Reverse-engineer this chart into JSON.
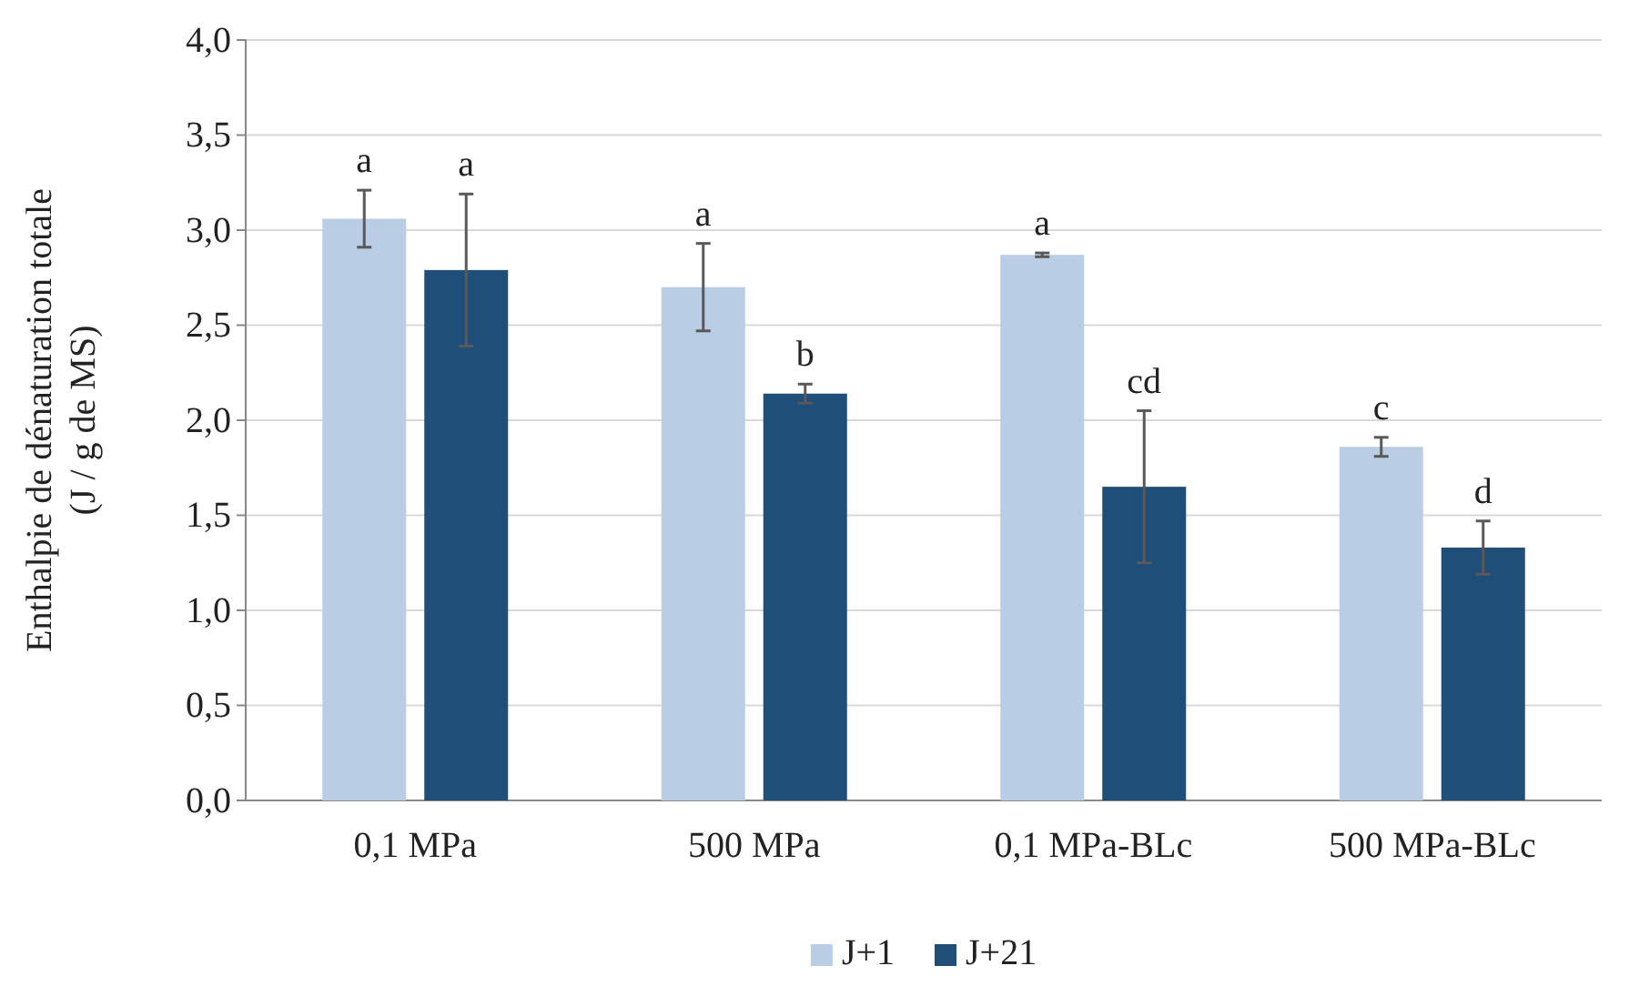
{
  "chart_data": {
    "type": "bar",
    "ylabel": "Enthalpie de dénaturation totale\n(J / g de MS)",
    "categories": [
      "0,1 MPa",
      "500 MPa",
      "0,1 MPa-BLc",
      "500 MPa-BLc"
    ],
    "series": [
      {
        "name": "J+1",
        "color": "#b9cde5",
        "values": [
          3.06,
          2.7,
          2.87,
          1.86
        ],
        "errors": [
          0.15,
          0.23,
          0.01,
          0.05
        ],
        "value_labels": [
          "a",
          "a",
          "a",
          "c"
        ]
      },
      {
        "name": "J+21",
        "color": "#1f4e79",
        "values": [
          2.79,
          2.14,
          1.65,
          1.33
        ],
        "errors": [
          0.4,
          0.05,
          0.4,
          0.14
        ],
        "value_labels": [
          "a",
          "b",
          "cd",
          "d"
        ]
      }
    ],
    "ylim": [
      0,
      4
    ],
    "yticks": [
      {
        "value": 0,
        "label": "0,0"
      },
      {
        "value": 0.5,
        "label": "0,5"
      },
      {
        "value": 1,
        "label": "1,0"
      },
      {
        "value": 1.5,
        "label": "1,5"
      },
      {
        "value": 2,
        "label": "2,0"
      },
      {
        "value": 2.5,
        "label": "2,5"
      },
      {
        "value": 3,
        "label": "3,0"
      },
      {
        "value": 3.5,
        "label": "3,5"
      },
      {
        "value": 4,
        "label": "4,0"
      }
    ],
    "grid": "y",
    "legend": "bottom"
  }
}
